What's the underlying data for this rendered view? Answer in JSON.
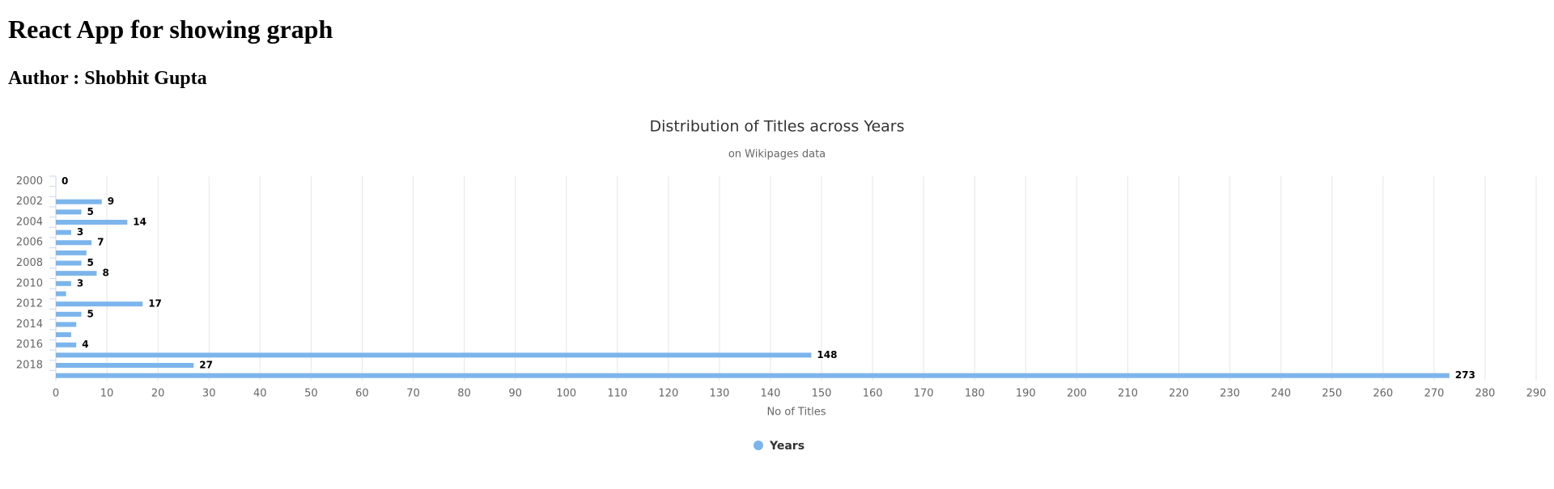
{
  "header": {
    "title": "React App for showing graph",
    "author": "Author : Shobhit Gupta"
  },
  "chart_data": {
    "type": "bar",
    "title": "Distribution of Titles across Years",
    "subtitle": "on Wikipages data",
    "x_label": "No of Titles",
    "categories": [
      "2000",
      null,
      "2002",
      null,
      "2004",
      null,
      "2006",
      null,
      "2008",
      null,
      "2010",
      null,
      "2012",
      null,
      "2014",
      null,
      "2016",
      null,
      "2018",
      null
    ],
    "series": [
      {
        "name": "Years",
        "color": "#7cb5ec",
        "values": [
          0,
          null,
          9,
          5,
          14,
          3,
          7,
          6,
          5,
          8,
          3,
          2,
          17,
          5,
          4,
          3,
          4,
          148,
          27,
          273
        ],
        "value_labels": [
          "0",
          null,
          "9",
          "5",
          "14",
          "3",
          "7",
          null,
          "5",
          "8",
          "3",
          null,
          "17",
          "5",
          null,
          null,
          "4",
          "148",
          "27",
          "273"
        ]
      }
    ],
    "xlim": [
      0,
      290
    ],
    "xticks": [
      0,
      10,
      20,
      30,
      40,
      50,
      60,
      70,
      80,
      90,
      100,
      110,
      120,
      130,
      140,
      150,
      160,
      170,
      180,
      190,
      200,
      210,
      220,
      230,
      240,
      250,
      260,
      270,
      280,
      290
    ],
    "grid": true,
    "legend": "bottom"
  }
}
